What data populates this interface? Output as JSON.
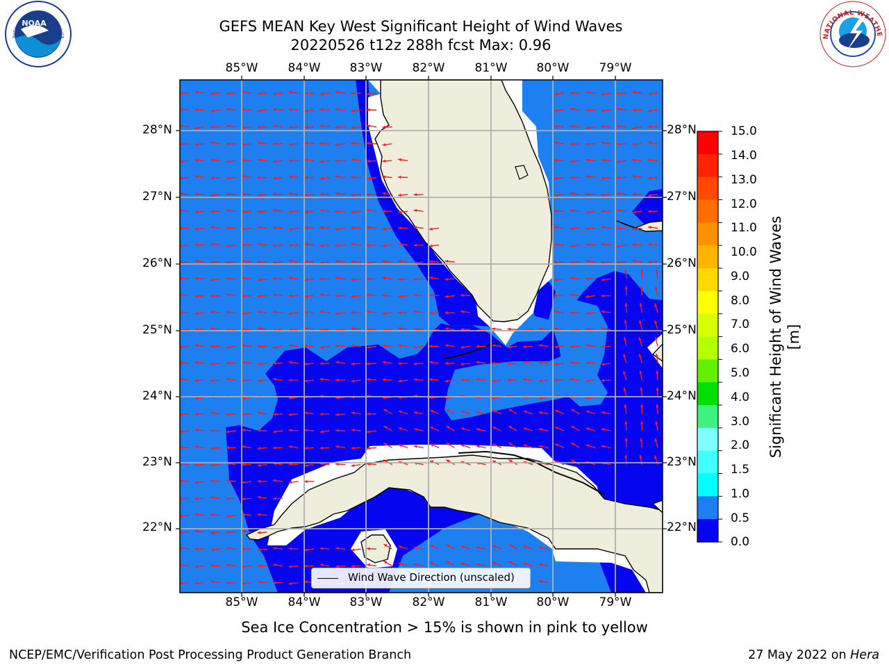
{
  "title": {
    "line1": "GEFS MEAN Key West Significant Height of Wind Waves",
    "line2": "20220526 t12z 288h fcst   Max: 0.96"
  },
  "map": {
    "lon_labels": [
      "85°W",
      "84°W",
      "83°W",
      "82°W",
      "81°W",
      "80°W",
      "79°W"
    ],
    "lat_labels": [
      "28°N",
      "27°N",
      "26°N",
      "25°N",
      "24°N",
      "23°N",
      "22°N"
    ],
    "colors": {
      "ocean_light": "#1e7ff0",
      "ocean_dark": "#0505f0",
      "land": "#efeedc",
      "arrow": "#ff1a1a",
      "grid": "#b0b0b0"
    },
    "legend": {
      "label": "Wind Wave Direction (unscaled)"
    }
  },
  "colorbar": {
    "label": "Significant Height of Wind Waves [m]",
    "ticks": [
      "15.0",
      "14.0",
      "13.0",
      "12.0",
      "11.0",
      "10.0",
      "9.0",
      "8.0",
      "7.0",
      "6.0",
      "5.0",
      "4.0",
      "3.0",
      "2.0",
      "1.5",
      "1.0",
      "0.5",
      "0.0"
    ],
    "colors": [
      "#ff0000",
      "#ff2400",
      "#ff4800",
      "#ff6c00",
      "#ff9000",
      "#ffb400",
      "#ffd800",
      "#ffff00",
      "#d8ff00",
      "#b4ff00",
      "#60f000",
      "#00e000",
      "#40f080",
      "#80ffff",
      "#40ffff",
      "#00ffff",
      "#1e7ff0",
      "#0505f0"
    ]
  },
  "logos": {
    "noaa_text": "NOAA",
    "noaa_ring": "NATIONAL OCEANIC AND ATMOSPHERIC ADMINISTRATION · U.S. DEPARTMENT OF COMMERCE",
    "nws_ring": "NATIONAL WEATHER SERVICE"
  },
  "footer": {
    "note": "Sea Ice Concentration > 15% is shown in pink to yellow",
    "left": "NCEP/EMC/Verification Post Processing Product Generation Branch",
    "right_prefix": "27 May 2022 on ",
    "right_host": "Hera"
  }
}
